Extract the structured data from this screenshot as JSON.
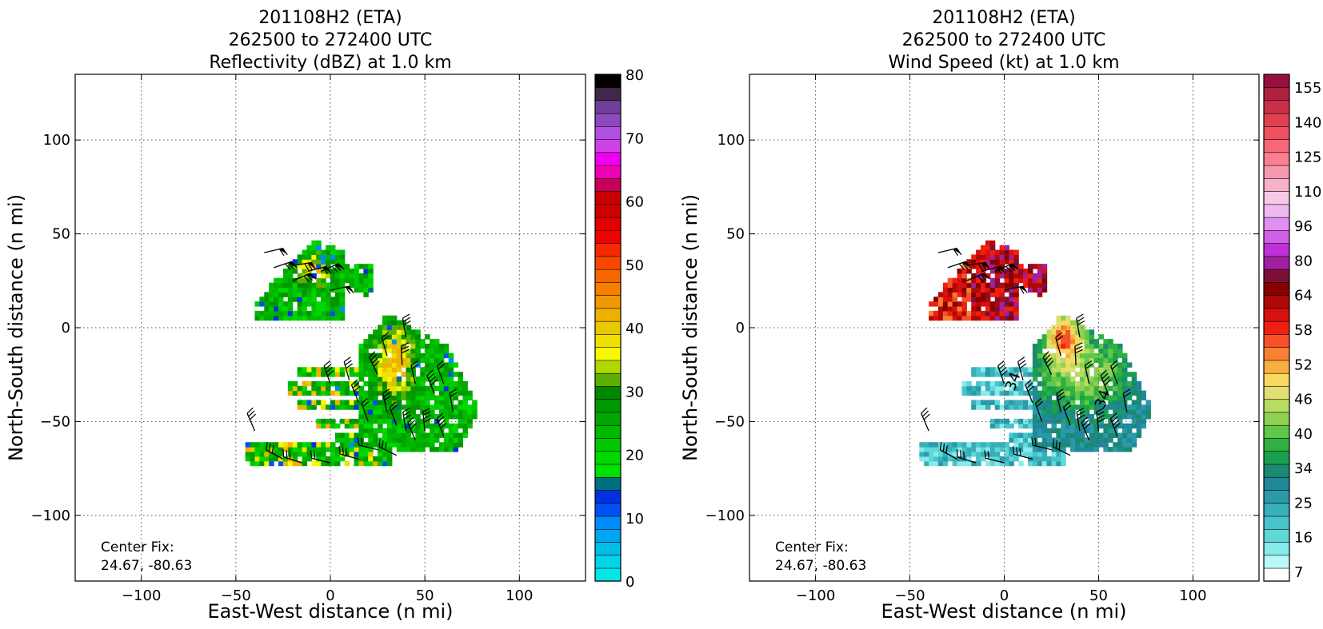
{
  "left_panel": {
    "title_line1": "201108H2 (ETA)",
    "title_line2": "262500 to 272400 UTC",
    "title_line3": "Reflectivity (dBZ) at 1.0 km",
    "xlabel": "East-West distance (n mi)",
    "ylabel": "North-South distance (n mi)",
    "center_fix_label": "Center Fix:",
    "center_fix_value": "24.67, -80.63",
    "colorbar_ticks": [
      "0",
      "10",
      "20",
      "30",
      "40",
      "50",
      "60",
      "70",
      "80"
    ],
    "colorbar_colors": [
      "#00e8e8",
      "#00d4e8",
      "#00bce8",
      "#00a4f0",
      "#008cf8",
      "#0050f8",
      "#0030e0",
      "#006e82",
      "#00e000",
      "#00d800",
      "#00c800",
      "#00b800",
      "#00a800",
      "#009800",
      "#008800",
      "#5cb000",
      "#b0d800",
      "#f8f800",
      "#f0e000",
      "#e8c800",
      "#f0b000",
      "#f09800",
      "#f88000",
      "#f86800",
      "#f84800",
      "#f82800",
      "#f00000",
      "#e00000",
      "#d00000",
      "#c80000",
      "#c8005a",
      "#f000b4",
      "#f000f0",
      "#d040e8",
      "#b050e0",
      "#9048c0",
      "#704098",
      "#402848",
      "#000000"
    ]
  },
  "right_panel": {
    "title_line1": "201108H2 (ETA)",
    "title_line2": "262500 to 272400 UTC",
    "title_line3": "Wind Speed (kt) at 1.0 km",
    "xlabel": "East-West distance (n mi)",
    "ylabel": "North-South distance (n mi)",
    "center_fix_label": "Center Fix:",
    "center_fix_value": "24.67, -80.63",
    "colorbar_ticks": [
      "7",
      "16",
      "25",
      "34",
      "40",
      "46",
      "52",
      "58",
      "64",
      "80",
      "96",
      "110",
      "125",
      "140",
      "155"
    ],
    "colorbar_colors": [
      "#ffffff",
      "#b8f8f8",
      "#88eaea",
      "#60d8d8",
      "#48c4cc",
      "#38b0b8",
      "#2a9aa8",
      "#208898",
      "#1a8a70",
      "#18a050",
      "#30b040",
      "#60c848",
      "#90d050",
      "#b8dc60",
      "#e0e070",
      "#f8d860",
      "#f8b040",
      "#f88030",
      "#f85028",
      "#f02010",
      "#d81010",
      "#b00808",
      "#880000",
      "#7a1038",
      "#a020a0",
      "#c030d8",
      "#d060e8",
      "#e090f0",
      "#f0b8f0",
      "#f8c8e8",
      "#f8b0cc",
      "#f898b0",
      "#f88090",
      "#f86878",
      "#f05060",
      "#e04050",
      "#c83048",
      "#b02040",
      "#981040"
    ],
    "contour_labels": [
      "34",
      "34"
    ]
  },
  "axes": {
    "xticks": [
      "−100",
      "−50",
      "0",
      "50",
      "100"
    ],
    "yticks": [
      "100",
      "50",
      "0",
      "−50",
      "−100"
    ]
  },
  "chart_data": [
    {
      "type": "heatmap",
      "title": "201108H2 (ETA) 262500 to 272400 UTC Reflectivity (dBZ) at 1.0 km",
      "xlabel": "East-West distance (n mi)",
      "ylabel": "North-South distance (n mi)",
      "xlim": [
        -135,
        135
      ],
      "ylim": [
        -135,
        135
      ],
      "grid": true,
      "colorbar": {
        "label": "Reflectivity (dBZ)",
        "min": 0,
        "max": 80,
        "ticks": [
          0,
          10,
          20,
          30,
          40,
          50,
          60,
          70,
          80
        ]
      },
      "field_summary": "Echo region roughly x -50..78, y -75..50 n mi; values mostly 20-40 dBZ, isolated 10-15 dBZ pixels",
      "annotation": "Center Fix: 24.67, -80.63"
    },
    {
      "type": "heatmap",
      "title": "201108H2 (ETA) 262500 to 272400 UTC Wind Speed (kt) at 1.0 km",
      "xlabel": "East-West distance (n mi)",
      "ylabel": "North-South distance (n mi)",
      "xlim": [
        -135,
        135
      ],
      "ylim": [
        -135,
        135
      ],
      "grid": true,
      "colorbar": {
        "label": "Wind Speed (kt)",
        "ticks": [
          7,
          16,
          25,
          34,
          40,
          46,
          52,
          58,
          64,
          80,
          96,
          110,
          125,
          140,
          155
        ]
      },
      "field_summary": "North-west cluster 46-64 kt; south-east region 16-58 kt with peak near x 30, y 0; 34 kt contour labeled",
      "annotation": "Center Fix: 24.67, -80.63"
    }
  ]
}
